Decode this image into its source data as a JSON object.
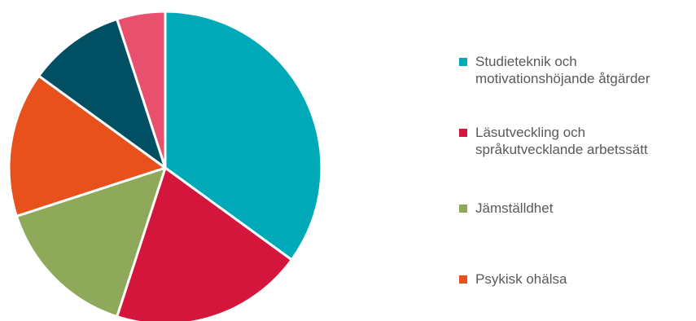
{
  "chart_data": {
    "type": "pie",
    "slices": [
      {
        "label": "Studieteknik och\nmotivationshöjande åtgärder",
        "value": 35,
        "color": "#00A9B7",
        "in_legend": true
      },
      {
        "label": "Läsutveckling och\nspråkutvecklande arbetssätt",
        "value": 20,
        "color": "#D4163C",
        "in_legend": true
      },
      {
        "label": "Jämställdhet",
        "value": 15,
        "color": "#8FA95A",
        "in_legend": true
      },
      {
        "label": "Psykisk ohälsa",
        "value": 15,
        "color": "#E8501C",
        "in_legend": true
      },
      {
        "label": "",
        "value": 10,
        "color": "#004F62",
        "in_legend": false
      },
      {
        "label": "",
        "value": 5,
        "color": "#E8506E",
        "in_legend": false
      }
    ],
    "legend_position": "right"
  }
}
